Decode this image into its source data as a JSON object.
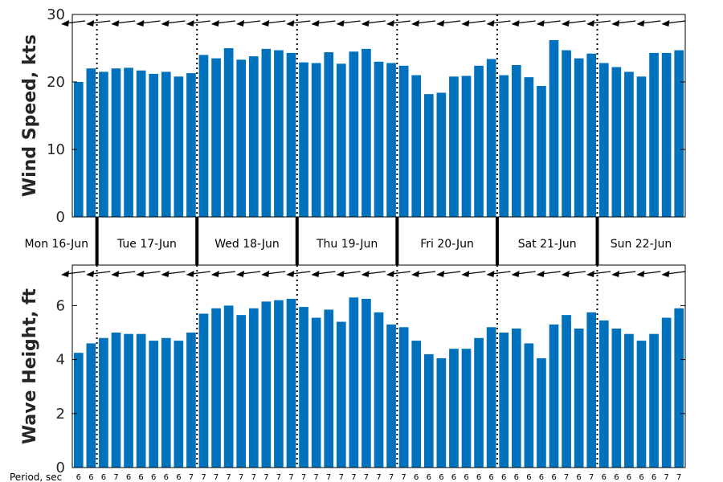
{
  "chart_data": [
    {
      "type": "bar",
      "ylabel": "Wind Speed, kts",
      "ylim": [
        0,
        30
      ],
      "yticks": [
        0,
        10,
        20,
        30
      ],
      "direction_arrows": true,
      "values": [
        20.0,
        22.0,
        21.5,
        22.0,
        22.1,
        21.7,
        21.2,
        21.5,
        20.8,
        21.3,
        24.0,
        23.5,
        25.0,
        23.3,
        23.8,
        24.9,
        24.7,
        24.3,
        22.9,
        22.8,
        24.4,
        22.7,
        24.5,
        24.9,
        23.0,
        22.8,
        22.4,
        21.0,
        18.2,
        18.4,
        20.8,
        20.9,
        22.4,
        23.4,
        21.0,
        22.5,
        20.7,
        19.4,
        26.2,
        24.7,
        23.5,
        24.2,
        22.8,
        22.2,
        21.5,
        20.8,
        24.3,
        24.3,
        24.7
      ]
    },
    {
      "type": "bar",
      "ylabel": "Wave Height, ft",
      "ylim": [
        0,
        7.5
      ],
      "yticks": [
        0,
        2,
        4,
        6
      ],
      "direction_arrows": true,
      "values": [
        4.25,
        4.6,
        4.8,
        5.0,
        4.95,
        4.95,
        4.7,
        4.8,
        4.7,
        5.0,
        5.7,
        5.9,
        6.0,
        5.65,
        5.9,
        6.15,
        6.2,
        6.25,
        5.95,
        5.55,
        5.85,
        5.4,
        6.3,
        6.25,
        5.75,
        5.3,
        5.2,
        4.7,
        4.2,
        4.05,
        4.4,
        4.4,
        4.8,
        5.2,
        5.0,
        5.15,
        4.6,
        4.05,
        5.3,
        5.65,
        5.15,
        5.75,
        5.45,
        5.15,
        4.95,
        4.7,
        4.95,
        5.55,
        5.9
      ]
    }
  ],
  "days": [
    "Mon 16-Jun",
    "Tue 17-Jun",
    "Wed 18-Jun",
    "Thu 19-Jun",
    "Fri 20-Jun",
    "Sat 21-Jun",
    "Sun 22-Jun"
  ],
  "bars_per_day": [
    2,
    8,
    8,
    8,
    8,
    8,
    7
  ],
  "period_title": "Period, sec",
  "periods": [
    6,
    6,
    6,
    7,
    6,
    6,
    6,
    6,
    6,
    7,
    7,
    7,
    7,
    7,
    7,
    7,
    7,
    7,
    7,
    7,
    7,
    7,
    7,
    7,
    7,
    7,
    7,
    6,
    6,
    6,
    6,
    6,
    6,
    6,
    6,
    6,
    6,
    6,
    6,
    7,
    6,
    7,
    6,
    6,
    6,
    6,
    6,
    7,
    7
  ]
}
